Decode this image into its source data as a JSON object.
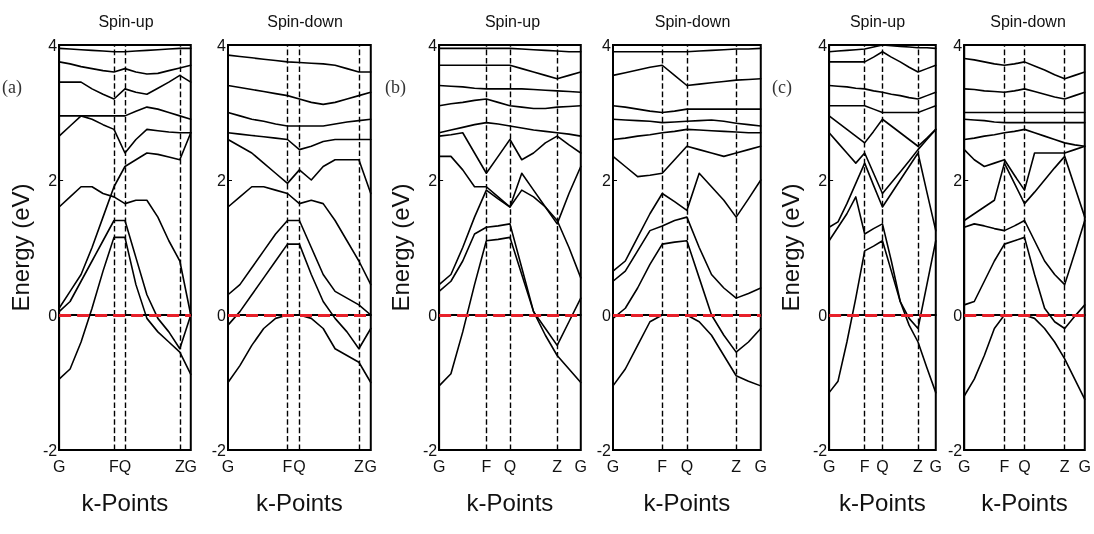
{
  "chart_data": [
    {
      "type": "line",
      "title": "Spin-up",
      "xlabel": "k-Points",
      "ylabel": "Energy (eV)",
      "annotations": [
        "(a)"
      ],
      "categories": [
        "G",
        null,
        null,
        null,
        null,
        "F",
        "Q",
        null,
        null,
        null,
        null,
        "Z",
        "G"
      ],
      "ylim": [
        -2,
        4
      ],
      "yticks": [
        -2,
        0,
        2,
        4
      ],
      "marker": "none",
      "line_style": "solid",
      "ref_lines": [
        {
          "axis": "x",
          "value": "F",
          "color": "#000000",
          "line_style": "dashed"
        },
        {
          "axis": "x",
          "value": "Q",
          "color": "#000000",
          "line_style": "dashed"
        },
        {
          "axis": "x",
          "value": "Z",
          "color": "#000000",
          "line_style": "dashed"
        },
        {
          "axis": "y",
          "value": 0,
          "color": "#e8202a",
          "line_style": "dashed"
        }
      ],
      "series": [
        {
          "color": "#000000",
          "values": [
            -0.95,
            -0.8,
            -0.4,
            0.1,
            0.65,
            1.15,
            1.15,
            0.45,
            -0.05,
            -0.25,
            -0.4,
            -0.55,
            -0.88
          ]
        },
        {
          "color": "#000000",
          "values": [
            0.05,
            0.2,
            0.5,
            0.8,
            1.1,
            1.4,
            1.4,
            0.85,
            0.3,
            -0.05,
            -0.25,
            -0.5,
            0.0
          ]
        },
        {
          "color": "#000000",
          "values": [
            0.1,
            0.35,
            0.6,
            1.0,
            1.45,
            1.9,
            2.2,
            2.3,
            2.4,
            2.38,
            2.34,
            2.3,
            2.7
          ]
        },
        {
          "color": "#000000",
          "values": [
            1.6,
            1.75,
            1.9,
            1.9,
            1.8,
            1.75,
            1.65,
            1.7,
            1.7,
            1.45,
            1.1,
            0.8,
            0.0
          ]
        },
        {
          "color": "#000000",
          "values": [
            2.65,
            2.8,
            2.95,
            2.9,
            2.82,
            2.75,
            2.4,
            2.6,
            2.75,
            2.73,
            2.71,
            2.7,
            2.7
          ]
        },
        {
          "color": "#000000",
          "values": [
            2.95,
            2.95,
            2.95,
            2.95,
            2.95,
            2.95,
            2.95,
            3.02,
            3.08,
            3.05,
            3.0,
            2.95,
            2.9
          ]
        },
        {
          "color": "#000000",
          "values": [
            3.45,
            3.45,
            3.45,
            3.35,
            3.27,
            3.2,
            3.35,
            3.3,
            3.27,
            3.36,
            3.45,
            3.55,
            3.45
          ]
        },
        {
          "color": "#000000",
          "values": [
            3.75,
            3.72,
            3.68,
            3.65,
            3.62,
            3.6,
            3.65,
            3.6,
            3.57,
            3.58,
            3.62,
            3.66,
            3.7
          ]
        },
        {
          "color": "#000000",
          "values": [
            3.95,
            3.94,
            3.93,
            3.92,
            3.91,
            3.9,
            3.9,
            3.91,
            3.92,
            3.93,
            3.94,
            3.95,
            3.95
          ]
        }
      ]
    },
    {
      "type": "line",
      "title": "Spin-down",
      "xlabel": "k-Points",
      "categories": [
        "G",
        null,
        null,
        null,
        null,
        "F",
        "Q",
        null,
        null,
        null,
        null,
        "Z",
        "G"
      ],
      "ylim": [
        -2,
        4
      ],
      "yticks": [
        -2,
        0,
        2,
        4
      ],
      "marker": "none",
      "line_style": "solid",
      "ref_lines": [
        {
          "axis": "x",
          "value": "F",
          "color": "#000000",
          "line_style": "dashed"
        },
        {
          "axis": "x",
          "value": "Q",
          "color": "#000000",
          "line_style": "dashed"
        },
        {
          "axis": "x",
          "value": "Z",
          "color": "#000000",
          "line_style": "dashed"
        },
        {
          "axis": "y",
          "value": 0,
          "color": "#e8202a",
          "line_style": "dashed"
        }
      ],
      "series": [
        {
          "color": "#000000",
          "values": [
            -1.0,
            -0.75,
            -0.45,
            -0.2,
            -0.05,
            0.0,
            0.0,
            -0.05,
            -0.2,
            -0.5,
            -0.6,
            -0.7,
            -1.0
          ]
        },
        {
          "color": "#000000",
          "values": [
            -0.15,
            0.05,
            0.3,
            0.55,
            0.8,
            1.05,
            1.05,
            0.6,
            0.2,
            -0.05,
            -0.25,
            -0.5,
            -0.2
          ]
        },
        {
          "color": "#000000",
          "values": [
            0.3,
            0.45,
            0.7,
            0.95,
            1.2,
            1.4,
            1.4,
            1.0,
            0.6,
            0.35,
            0.25,
            0.15,
            0.0
          ]
        },
        {
          "color": "#000000",
          "values": [
            1.6,
            1.75,
            1.9,
            1.9,
            1.85,
            1.8,
            1.65,
            1.7,
            1.65,
            1.4,
            1.1,
            0.8,
            0.45
          ]
        },
        {
          "color": "#000000",
          "values": [
            2.6,
            2.5,
            2.4,
            2.25,
            2.1,
            1.95,
            2.15,
            2.0,
            2.2,
            2.3,
            2.3,
            2.3,
            1.8
          ]
        },
        {
          "color": "#000000",
          "values": [
            2.7,
            2.68,
            2.66,
            2.64,
            2.62,
            2.6,
            2.45,
            2.5,
            2.57,
            2.6,
            2.6,
            2.6,
            2.6
          ]
        },
        {
          "color": "#000000",
          "values": [
            3.0,
            2.95,
            2.9,
            2.87,
            2.83,
            2.8,
            2.8,
            2.8,
            2.8,
            2.83,
            2.86,
            2.88,
            2.9
          ]
        },
        {
          "color": "#000000",
          "values": [
            3.4,
            3.37,
            3.34,
            3.31,
            3.28,
            3.25,
            3.2,
            3.15,
            3.12,
            3.15,
            3.2,
            3.25,
            3.3
          ]
        },
        {
          "color": "#000000",
          "values": [
            3.85,
            3.83,
            3.81,
            3.79,
            3.77,
            3.75,
            3.74,
            3.73,
            3.72,
            3.7,
            3.65,
            3.6,
            3.6
          ]
        }
      ]
    },
    {
      "type": "line",
      "title": "Spin-up",
      "xlabel": "k-Points",
      "ylabel": "Energy (eV)",
      "annotations": [
        "(b)"
      ],
      "categories": [
        "G",
        null,
        null,
        null,
        "F",
        null,
        "Q",
        null,
        null,
        null,
        "Z",
        null,
        "G"
      ],
      "ylim": [
        -2,
        4
      ],
      "yticks": [
        -2,
        0,
        2,
        4
      ],
      "marker": "none",
      "line_style": "solid",
      "ref_lines": [
        {
          "axis": "x",
          "value": "F",
          "color": "#000000",
          "line_style": "dashed"
        },
        {
          "axis": "x",
          "value": "Q",
          "color": "#000000",
          "line_style": "dashed"
        },
        {
          "axis": "x",
          "value": "Z",
          "color": "#000000",
          "line_style": "dashed"
        },
        {
          "axis": "y",
          "value": 0,
          "color": "#e8202a",
          "line_style": "dashed"
        }
      ],
      "series": [
        {
          "color": "#000000",
          "values": [
            -1.05,
            -0.87,
            -0.25,
            0.45,
            1.1,
            1.12,
            1.15,
            0.6,
            0.05,
            -0.3,
            -0.6,
            -0.8,
            -1.0
          ]
        },
        {
          "color": "#000000",
          "values": [
            0.35,
            0.5,
            0.8,
            1.2,
            1.3,
            1.32,
            1.35,
            0.7,
            0.05,
            -0.2,
            -0.45,
            -0.1,
            0.25
          ]
        },
        {
          "color": "#000000",
          "values": [
            0.45,
            0.6,
            1.0,
            1.45,
            1.85,
            1.72,
            1.6,
            1.85,
            1.75,
            1.6,
            1.4,
            1.0,
            0.55
          ]
        },
        {
          "color": "#000000",
          "values": [
            2.35,
            2.35,
            2.15,
            1.9,
            1.9,
            1.75,
            1.6,
            2.1,
            1.85,
            1.6,
            1.35,
            1.8,
            2.2
          ]
        },
        {
          "color": "#000000",
          "values": [
            2.65,
            2.67,
            2.7,
            2.4,
            2.1,
            2.35,
            2.6,
            2.3,
            2.4,
            2.55,
            2.65,
            2.52,
            2.4
          ]
        },
        {
          "color": "#000000",
          "values": [
            2.7,
            2.74,
            2.78,
            2.82,
            2.85,
            2.83,
            2.8,
            2.77,
            2.74,
            2.72,
            2.7,
            2.68,
            2.65
          ]
        },
        {
          "color": "#000000",
          "values": [
            3.1,
            3.13,
            3.15,
            3.18,
            3.2,
            3.15,
            3.1,
            3.08,
            3.06,
            3.06,
            3.08,
            3.09,
            3.1
          ]
        },
        {
          "color": "#000000",
          "values": [
            3.4,
            3.39,
            3.38,
            3.36,
            3.35,
            3.35,
            3.35,
            3.35,
            3.34,
            3.33,
            3.32,
            3.31,
            3.3
          ]
        },
        {
          "color": "#000000",
          "values": [
            3.7,
            3.7,
            3.7,
            3.7,
            3.7,
            3.7,
            3.7,
            3.65,
            3.6,
            3.55,
            3.5,
            3.55,
            3.6
          ]
        },
        {
          "color": "#000000",
          "values": [
            3.95,
            3.95,
            3.95,
            3.95,
            3.95,
            3.95,
            3.95,
            3.94,
            3.93,
            3.92,
            3.91,
            3.9,
            3.9
          ]
        }
      ]
    },
    {
      "type": "line",
      "title": "Spin-down",
      "xlabel": "k-Points",
      "categories": [
        "G",
        null,
        null,
        null,
        "F",
        null,
        "Q",
        null,
        null,
        null,
        "Z",
        null,
        "G"
      ],
      "ylim": [
        -2,
        4
      ],
      "yticks": [
        -2,
        0,
        2,
        4
      ],
      "marker": "none",
      "line_style": "solid",
      "ref_lines": [
        {
          "axis": "x",
          "value": "F",
          "color": "#000000",
          "line_style": "dashed"
        },
        {
          "axis": "x",
          "value": "Q",
          "color": "#000000",
          "line_style": "dashed"
        },
        {
          "axis": "x",
          "value": "Z",
          "color": "#000000",
          "line_style": "dashed"
        },
        {
          "axis": "y",
          "value": 0,
          "color": "#e8202a",
          "line_style": "dashed"
        }
      ],
      "series": [
        {
          "color": "#000000",
          "values": [
            -1.05,
            -0.8,
            -0.45,
            -0.1,
            0.0,
            0.0,
            0.0,
            -0.1,
            -0.3,
            -0.6,
            -0.9,
            -0.98,
            -1.05
          ]
        },
        {
          "color": "#000000",
          "values": [
            -0.05,
            0.1,
            0.4,
            0.75,
            1.05,
            1.08,
            1.1,
            0.55,
            0.0,
            -0.3,
            -0.55,
            -0.4,
            -0.2
          ]
        },
        {
          "color": "#000000",
          "values": [
            0.5,
            0.65,
            0.95,
            1.25,
            1.32,
            1.4,
            1.45,
            1.0,
            0.6,
            0.4,
            0.25,
            0.32,
            0.4
          ]
        },
        {
          "color": "#000000",
          "values": [
            0.65,
            0.8,
            1.15,
            1.5,
            1.8,
            1.68,
            1.55,
            2.1,
            1.9,
            1.7,
            1.45,
            1.72,
            2.0
          ]
        },
        {
          "color": "#000000",
          "values": [
            2.35,
            2.2,
            2.05,
            2.07,
            2.1,
            2.3,
            2.5,
            2.45,
            2.4,
            2.35,
            2.4,
            2.45,
            2.5
          ]
        },
        {
          "color": "#000000",
          "values": [
            2.6,
            2.62,
            2.65,
            2.67,
            2.7,
            2.72,
            2.75,
            2.74,
            2.73,
            2.72,
            2.71,
            2.7,
            2.7
          ]
        },
        {
          "color": "#000000",
          "values": [
            2.9,
            2.89,
            2.88,
            2.87,
            2.85,
            2.86,
            2.87,
            2.88,
            2.89,
            2.87,
            2.84,
            2.82,
            2.8
          ]
        },
        {
          "color": "#000000",
          "values": [
            3.1,
            3.08,
            3.05,
            3.02,
            3.0,
            3.02,
            3.05,
            3.05,
            3.05,
            3.05,
            3.05,
            3.05,
            3.05
          ]
        },
        {
          "color": "#000000",
          "values": [
            3.55,
            3.59,
            3.63,
            3.67,
            3.7,
            3.55,
            3.4,
            3.42,
            3.44,
            3.46,
            3.48,
            3.49,
            3.5
          ]
        },
        {
          "color": "#000000",
          "values": [
            3.9,
            3.9,
            3.9,
            3.9,
            3.9,
            3.9,
            3.9,
            3.91,
            3.92,
            3.93,
            3.94,
            3.94,
            3.95
          ]
        }
      ]
    },
    {
      "type": "line",
      "title": "Spin-up",
      "xlabel": "k-Points",
      "ylabel": "Energy (eV)",
      "annotations": [
        "(c)"
      ],
      "categories": [
        "G",
        null,
        null,
        null,
        "F",
        null,
        "Q",
        null,
        null,
        null,
        "Z",
        null,
        "G"
      ],
      "ylim": [
        -2,
        4
      ],
      "yticks": [
        -2,
        0,
        2,
        4
      ],
      "marker": "none",
      "line_style": "solid",
      "ref_lines": [
        {
          "axis": "x",
          "value": "F",
          "color": "#000000",
          "line_style": "dashed"
        },
        {
          "axis": "x",
          "value": "Q",
          "color": "#000000",
          "line_style": "dashed"
        },
        {
          "axis": "x",
          "value": "Z",
          "color": "#000000",
          "line_style": "dashed"
        },
        {
          "axis": "y",
          "value": 0,
          "color": "#e8202a",
          "line_style": "dashed"
        }
      ],
      "series": [
        {
          "color": "#000000",
          "values": [
            -1.15,
            -0.98,
            -0.4,
            0.25,
            0.95,
            1.02,
            1.1,
            0.65,
            0.2,
            -0.15,
            -0.4,
            -0.78,
            -1.15
          ]
        },
        {
          "color": "#000000",
          "values": [
            1.1,
            1.3,
            1.5,
            1.75,
            1.2,
            1.28,
            1.35,
            0.8,
            0.2,
            -0.05,
            -0.2,
            0.45,
            1.1
          ]
        },
        {
          "color": "#000000",
          "values": [
            1.3,
            1.38,
            1.65,
            1.95,
            2.25,
            1.92,
            1.6,
            1.8,
            2.0,
            2.2,
            2.4,
            1.82,
            1.25
          ]
        },
        {
          "color": "#000000",
          "values": [
            2.7,
            2.55,
            2.4,
            2.25,
            2.4,
            2.1,
            1.8,
            1.96,
            2.12,
            2.28,
            2.45,
            2.6,
            2.75
          ]
        },
        {
          "color": "#000000",
          "values": [
            2.95,
            2.85,
            2.75,
            2.65,
            2.55,
            2.72,
            2.9,
            2.8,
            2.7,
            2.6,
            2.5,
            2.62,
            2.75
          ]
        },
        {
          "color": "#000000",
          "values": [
            3.1,
            3.1,
            3.1,
            3.1,
            3.1,
            3.05,
            3.0,
            3.0,
            3.0,
            3.0,
            3.0,
            3.05,
            3.1
          ]
        },
        {
          "color": "#000000",
          "values": [
            3.4,
            3.39,
            3.38,
            3.36,
            3.35,
            3.32,
            3.3,
            3.27,
            3.25,
            3.22,
            3.2,
            3.25,
            3.3
          ]
        },
        {
          "color": "#000000",
          "values": [
            3.75,
            3.75,
            3.75,
            3.75,
            3.75,
            3.82,
            3.9,
            3.82,
            3.75,
            3.67,
            3.6,
            3.65,
            3.7
          ]
        },
        {
          "color": "#000000",
          "values": [
            3.9,
            3.91,
            3.92,
            3.93,
            3.94,
            3.97,
            4.0,
            3.99,
            3.98,
            3.97,
            3.96,
            3.96,
            3.95
          ]
        }
      ]
    },
    {
      "type": "line",
      "title": "Spin-down",
      "xlabel": "k-Points",
      "categories": [
        "G",
        null,
        null,
        null,
        "F",
        null,
        "Q",
        null,
        null,
        null,
        "Z",
        null,
        "G"
      ],
      "ylim": [
        -2,
        4
      ],
      "yticks": [
        -2,
        0,
        2,
        4
      ],
      "marker": "none",
      "line_style": "solid",
      "ref_lines": [
        {
          "axis": "x",
          "value": "F",
          "color": "#000000",
          "line_style": "dashed"
        },
        {
          "axis": "x",
          "value": "Q",
          "color": "#000000",
          "line_style": "dashed"
        },
        {
          "axis": "x",
          "value": "Z",
          "color": "#000000",
          "line_style": "dashed"
        },
        {
          "axis": "y",
          "value": 0,
          "color": "#e8202a",
          "line_style": "dashed"
        }
      ],
      "series": [
        {
          "color": "#000000",
          "values": [
            -1.2,
            -0.95,
            -0.6,
            -0.2,
            0.0,
            0.0,
            0.0,
            -0.05,
            -0.2,
            -0.4,
            -0.65,
            -0.95,
            -1.25
          ]
        },
        {
          "color": "#000000",
          "values": [
            0.15,
            0.2,
            0.5,
            0.8,
            1.05,
            1.1,
            1.15,
            0.6,
            0.1,
            -0.1,
            -0.2,
            -0.02,
            0.15
          ]
        },
        {
          "color": "#000000",
          "values": [
            1.3,
            1.35,
            1.32,
            1.28,
            1.25,
            1.32,
            1.4,
            1.1,
            0.8,
            0.6,
            0.45,
            0.92,
            1.4
          ]
        },
        {
          "color": "#000000",
          "values": [
            1.4,
            1.5,
            1.6,
            1.7,
            2.25,
            1.95,
            1.65,
            1.82,
            2.0,
            2.18,
            2.35,
            1.9,
            1.45
          ]
        },
        {
          "color": "#000000",
          "values": [
            2.45,
            2.3,
            2.2,
            2.25,
            2.3,
            2.07,
            1.85,
            2.4,
            2.4,
            2.4,
            2.4,
            2.45,
            2.5
          ]
        },
        {
          "color": "#000000",
          "values": [
            2.6,
            2.62,
            2.65,
            2.67,
            2.7,
            2.72,
            2.75,
            2.7,
            2.65,
            2.6,
            2.55,
            2.52,
            2.5
          ]
        },
        {
          "color": "#000000",
          "values": [
            2.9,
            2.89,
            2.88,
            2.86,
            2.85,
            2.85,
            2.85,
            2.85,
            2.85,
            2.85,
            2.85,
            2.85,
            2.85
          ]
        },
        {
          "color": "#000000",
          "values": [
            3.0,
            3.0,
            3.0,
            3.0,
            3.0,
            3.0,
            3.0,
            3.0,
            3.0,
            3.0,
            3.0,
            3.0,
            3.0
          ]
        },
        {
          "color": "#000000",
          "values": [
            3.35,
            3.34,
            3.32,
            3.31,
            3.3,
            3.32,
            3.35,
            3.31,
            3.27,
            3.23,
            3.2,
            3.25,
            3.3
          ]
        },
        {
          "color": "#000000",
          "values": [
            3.8,
            3.78,
            3.75,
            3.72,
            3.7,
            3.72,
            3.75,
            3.69,
            3.63,
            3.56,
            3.5,
            3.55,
            3.6
          ]
        }
      ]
    }
  ]
}
